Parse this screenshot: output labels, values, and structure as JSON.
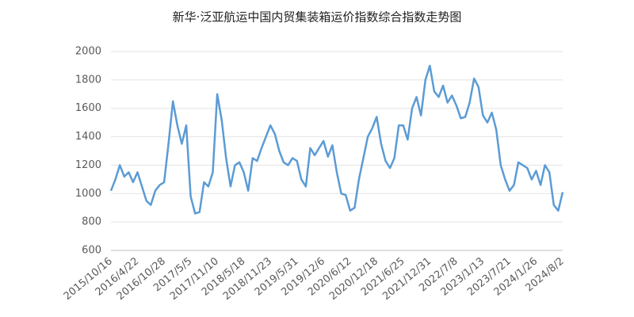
{
  "chart_data": {
    "type": "line",
    "title": "新华·泛亚航运中国内贸集装箱运价指数综合指数走势图",
    "categories": [
      "2015/10/16",
      null,
      null,
      null,
      null,
      null,
      "2016/4/22",
      null,
      null,
      null,
      null,
      null,
      "2016/10/28",
      null,
      null,
      null,
      null,
      null,
      "2017/5/5",
      null,
      null,
      null,
      null,
      null,
      "2017/11/10",
      null,
      null,
      null,
      null,
      null,
      "2018/5/18",
      null,
      null,
      null,
      null,
      null,
      "2018/11/23",
      null,
      null,
      null,
      null,
      null,
      "2019/5/31",
      null,
      null,
      null,
      null,
      null,
      "2019/12/6",
      null,
      null,
      null,
      null,
      null,
      "2020/6/12",
      null,
      null,
      null,
      null,
      null,
      "2020/12/18",
      null,
      null,
      null,
      null,
      null,
      "2021/6/25",
      null,
      null,
      null,
      null,
      null,
      "2021/12/31",
      null,
      null,
      null,
      null,
      null,
      "2022/7/8",
      null,
      null,
      null,
      null,
      null,
      "2023/1/13",
      null,
      null,
      null,
      null,
      null,
      "2023/7/21",
      null,
      null,
      null,
      null,
      null,
      "2024/1/26",
      null,
      null,
      null,
      null,
      null,
      "2024/8/2"
    ],
    "series": [
      {
        "color": "#5b9bd5",
        "values": [
          1020,
          1100,
          1200,
          1120,
          1150,
          1080,
          1150,
          1050,
          950,
          920,
          1020,
          1060,
          1080,
          1350,
          1650,
          1480,
          1350,
          1480,
          980,
          860,
          870,
          1080,
          1050,
          1150,
          1700,
          1520,
          1250,
          1050,
          1200,
          1220,
          1150,
          1020,
          1250,
          1230,
          1320,
          1400,
          1480,
          1420,
          1300,
          1220,
          1200,
          1250,
          1230,
          1100,
          1050,
          1320,
          1270,
          1320,
          1370,
          1260,
          1340,
          1150,
          1000,
          990,
          880,
          900,
          1100,
          1250,
          1400,
          1460,
          1540,
          1350,
          1230,
          1180,
          1250,
          1480,
          1480,
          1380,
          1600,
          1680,
          1550,
          1800,
          1900,
          1720,
          1680,
          1760,
          1640,
          1690,
          1620,
          1530,
          1540,
          1640,
          1810,
          1750,
          1550,
          1500,
          1570,
          1450,
          1200,
          1100,
          1020,
          1060,
          1220,
          1200,
          1180,
          1100,
          1160,
          1060,
          1200,
          1150,
          920,
          880,
          1010
        ]
      }
    ],
    "ylim": [
      600,
      2000
    ],
    "yticks": [
      600,
      800,
      1000,
      1200,
      1400,
      1600,
      1800,
      2000
    ],
    "grid": true
  }
}
